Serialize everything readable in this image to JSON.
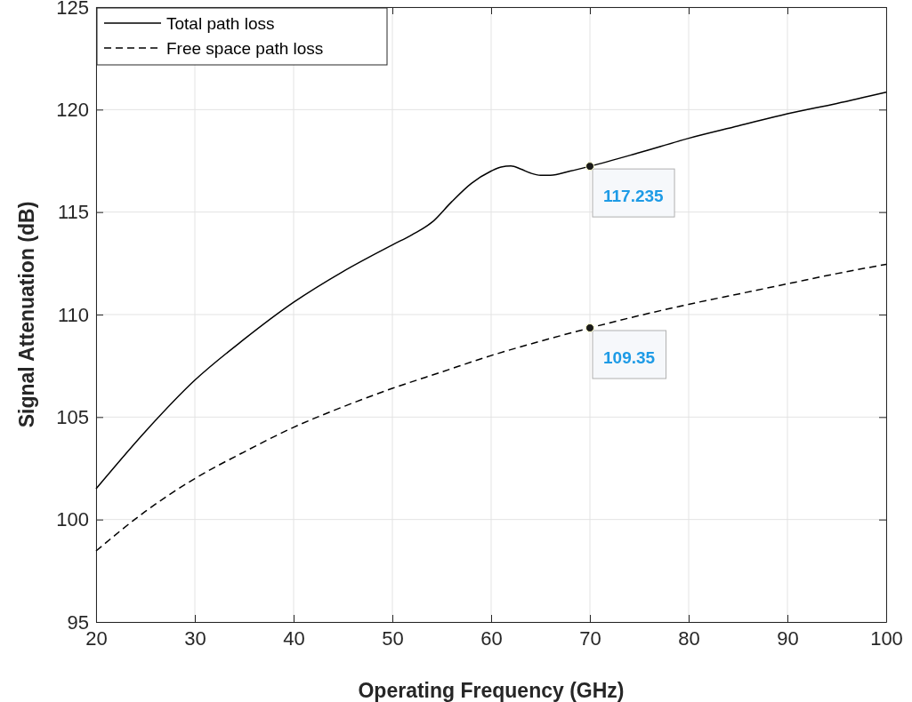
{
  "chart_data": {
    "type": "line",
    "xlabel": "Operating Frequency (GHz)",
    "ylabel": "Signal Attenuation (dB)",
    "xlim": [
      20,
      100
    ],
    "xticks": [
      20,
      30,
      40,
      50,
      60,
      70,
      80,
      90,
      100
    ],
    "ylim": [
      95,
      125
    ],
    "yticks": [
      95,
      100,
      105,
      110,
      115,
      120,
      125
    ],
    "grid": true,
    "legend": "top left",
    "series": [
      {
        "name": "Total path loss",
        "color": "#000000",
        "line_style": "solid",
        "x": [
          20,
          25,
          30,
          35,
          40,
          45,
          50,
          52,
          54,
          56,
          58,
          60,
          61,
          62,
          63,
          64,
          65,
          66,
          68,
          70,
          75,
          80,
          85,
          90,
          95,
          100
        ],
        "values": [
          101.5,
          104.3,
          106.8,
          108.8,
          110.6,
          112.1,
          113.4,
          113.9,
          114.5,
          115.5,
          116.4,
          117.0,
          117.2,
          117.25,
          117.1,
          116.9,
          116.8,
          116.8,
          117.0,
          117.235,
          117.9,
          118.6,
          119.2,
          119.8,
          120.3,
          120.85
        ]
      },
      {
        "name": "Free space path loss",
        "color": "#000000",
        "line_style": "dashed",
        "x": [
          20,
          25,
          30,
          35,
          40,
          45,
          50,
          55,
          60,
          65,
          70,
          75,
          80,
          85,
          90,
          95,
          100
        ],
        "values": [
          98.47,
          100.4,
          102.0,
          103.3,
          104.5,
          105.5,
          106.4,
          107.2,
          108.0,
          108.7,
          109.35,
          109.95,
          110.5,
          111.0,
          111.5,
          112.0,
          112.45
        ]
      }
    ],
    "annotations": [
      {
        "text": "117.235",
        "x": 70,
        "y": 117.235
      },
      {
        "text": "109.35",
        "x": 70,
        "y": 109.35
      }
    ]
  }
}
